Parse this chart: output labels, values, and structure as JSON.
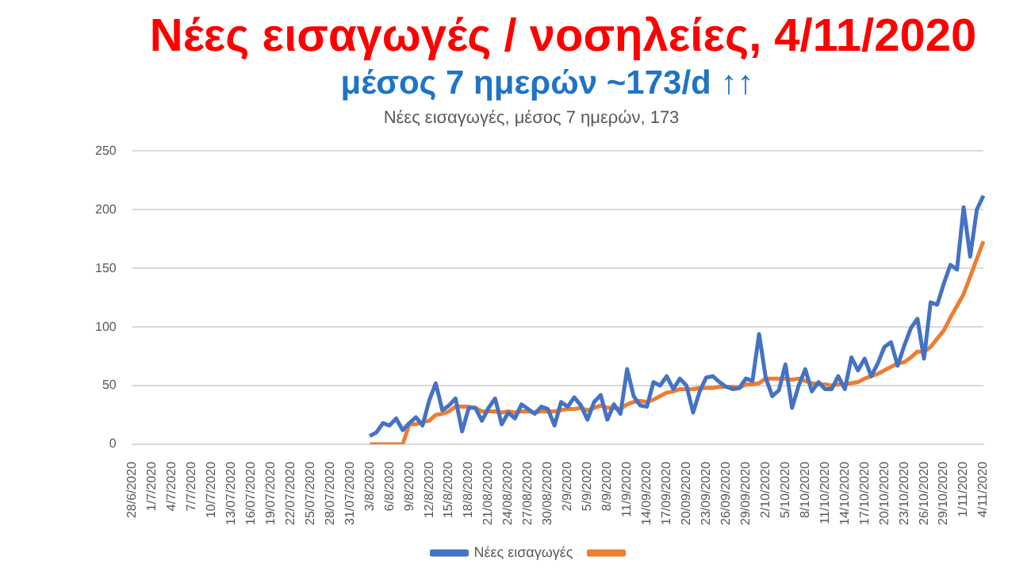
{
  "chart_data": {
    "type": "line",
    "title": "Νέες εισαγωγές / νοσηλείες, 4/11/2020",
    "subtitle": "μέσος 7 ημερών ~173/d ↑↑",
    "annotations": [
      "Νέες εισαγωγές, μέσος 7 ημερών, 173"
    ],
    "categories": [
      "28/6/2020",
      null,
      null,
      "1/7/2020",
      null,
      null,
      "4/7/2020",
      null,
      null,
      "7/7/2020",
      null,
      null,
      "10/7/2020",
      null,
      null,
      "13/07/2020",
      null,
      null,
      "16/07/2020",
      null,
      null,
      "19/07/2020",
      null,
      null,
      "22/07/2020",
      null,
      null,
      "25/07/2020",
      null,
      null,
      "28/07/2020",
      null,
      null,
      "31/07/2020",
      null,
      null,
      "3/8/2020",
      null,
      null,
      "6/8/2020",
      null,
      null,
      "9/8/2020",
      null,
      null,
      "12/8/2020",
      null,
      null,
      "15/8/2020",
      null,
      null,
      "18/8/2020",
      null,
      null,
      "21/08/2020",
      null,
      null,
      "24/08/2020",
      null,
      null,
      "27/08/2020",
      null,
      null,
      "30/08/2020",
      null,
      null,
      "2/9/2020",
      null,
      null,
      "5/9/2020",
      null,
      null,
      "8/9/2020",
      null,
      null,
      "11/9/2020",
      null,
      null,
      "14/09/2020",
      null,
      null,
      "17/09/2020",
      null,
      null,
      "20/09/2020",
      null,
      null,
      "23/09/2020",
      null,
      null,
      "26/09/2020",
      null,
      null,
      "29/09/2020",
      null,
      null,
      "2/10/2020",
      null,
      null,
      "5/10/2020",
      null,
      null,
      "8/10/2020",
      null,
      null,
      "11/10/2020",
      null,
      null,
      "14/10/2020",
      null,
      null,
      "17/10/2020",
      null,
      null,
      "20/10/2020",
      null,
      null,
      "23/10/2020",
      null,
      null,
      "26/10/2020",
      null,
      null,
      "29/10/2020",
      null,
      null,
      "1/11/2020",
      null,
      null,
      "4/11/2020"
    ],
    "series": [
      {
        "name": "Νέες εισαγωγές",
        "color": "#4472c4",
        "values": [
          null,
          null,
          null,
          null,
          null,
          null,
          null,
          null,
          null,
          null,
          null,
          null,
          null,
          null,
          null,
          null,
          null,
          null,
          null,
          null,
          null,
          null,
          null,
          null,
          null,
          null,
          null,
          null,
          null,
          null,
          null,
          null,
          null,
          null,
          null,
          null,
          7,
          10,
          18,
          16,
          22,
          12,
          18,
          23,
          16,
          37,
          52,
          29,
          33,
          39,
          11,
          31,
          31,
          20,
          31,
          39,
          17,
          27,
          22,
          34,
          30,
          26,
          32,
          30,
          16,
          36,
          32,
          40,
          33,
          21,
          36,
          42,
          21,
          34,
          26,
          64,
          41,
          33,
          32,
          53,
          50,
          58,
          47,
          56,
          50,
          27,
          45,
          57,
          58,
          53,
          49,
          47,
          48,
          56,
          54,
          94,
          57,
          41,
          46,
          68,
          31,
          50,
          64,
          45,
          53,
          47,
          47,
          58,
          47,
          74,
          63,
          73,
          58,
          69,
          83,
          87,
          67,
          84,
          99,
          107,
          73,
          121,
          119,
          137,
          153,
          149,
          202,
          160,
          200,
          212
        ]
      },
      {
        "color": "#ed7d31",
        "values": [
          null,
          null,
          null,
          null,
          null,
          null,
          null,
          null,
          null,
          null,
          null,
          null,
          null,
          null,
          null,
          null,
          null,
          null,
          null,
          null,
          null,
          null,
          null,
          null,
          null,
          null,
          null,
          null,
          null,
          null,
          null,
          null,
          null,
          null,
          null,
          null,
          0,
          0,
          0,
          0,
          0,
          0,
          17,
          17,
          19,
          20,
          25,
          26,
          28,
          32,
          32,
          32,
          31,
          28,
          28,
          28,
          27,
          28,
          27,
          28,
          28,
          27,
          28,
          28,
          28,
          29,
          30,
          30,
          31,
          29,
          31,
          33,
          31,
          31,
          30,
          34,
          36,
          37,
          36,
          38,
          41,
          44,
          45,
          47,
          47,
          47,
          48,
          48,
          48,
          49,
          49,
          49,
          48,
          51,
          51,
          52,
          56,
          56,
          56,
          56,
          55,
          56,
          54,
          52,
          51,
          51,
          50,
          51,
          51,
          52,
          53,
          56,
          58,
          60,
          63,
          66,
          69,
          70,
          74,
          79,
          79,
          83,
          90,
          97,
          108,
          118,
          128,
          143,
          158,
          173
        ]
      }
    ],
    "ylim": [
      0,
      250
    ],
    "yticks": [
      0,
      50,
      100,
      150,
      200,
      250
    ],
    "grid": "y",
    "legend": "bottom",
    "tick_labels": "xy"
  }
}
